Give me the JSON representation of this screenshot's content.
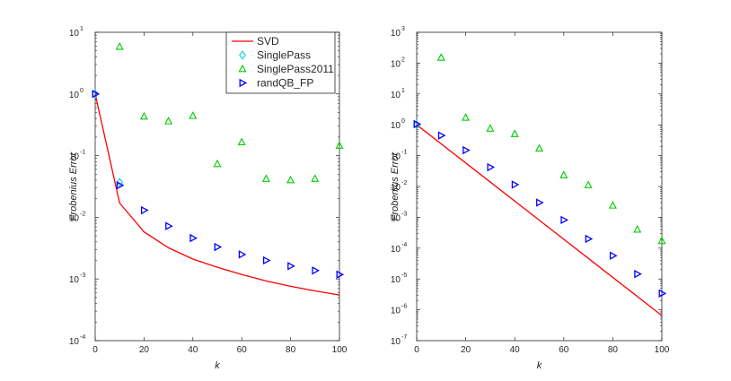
{
  "chart_data": [
    {
      "type": "line",
      "xlabel": "k",
      "ylabel": "Frobenius Error",
      "xlim": [
        0,
        100
      ],
      "xticks": [
        0,
        20,
        40,
        60,
        80,
        100
      ],
      "yscale": "log",
      "ylim": [
        0.0001,
        10
      ],
      "yticks": [
        {
          "base": "10",
          "exp": "-4",
          "value": 0.0001
        },
        {
          "base": "10",
          "exp": "-3",
          "value": 0.001
        },
        {
          "base": "10",
          "exp": "-2",
          "value": 0.01
        },
        {
          "base": "10",
          "exp": "-1",
          "value": 0.1
        },
        {
          "base": "10",
          "exp": "0",
          "value": 1
        },
        {
          "base": "10",
          "exp": "1",
          "value": 10
        }
      ],
      "legend_position": "top-right",
      "series": [
        {
          "name": "SVD",
          "style": "line",
          "color": "#ff0000",
          "x": [
            0,
            10,
            20,
            30,
            40,
            50,
            60,
            70,
            80,
            90,
            100
          ],
          "y": [
            1.0,
            0.017,
            0.0058,
            0.0032,
            0.0021,
            0.00155,
            0.00118,
            0.00093,
            0.00076,
            0.00064,
            0.00055
          ]
        },
        {
          "name": "SinglePass",
          "style": "marker",
          "marker": "diamond",
          "color": "#00d4e6",
          "x": [
            0,
            10
          ],
          "y": [
            1.0,
            0.037
          ]
        },
        {
          "name": "SinglePass2011",
          "style": "marker",
          "marker": "triangle-up",
          "color": "#00cc00",
          "x": [
            10,
            20,
            30,
            40,
            50,
            60,
            70,
            80,
            90,
            100
          ],
          "y": [
            5.8,
            0.43,
            0.36,
            0.44,
            0.073,
            0.165,
            0.042,
            0.04,
            0.042,
            0.145
          ]
        },
        {
          "name": "randQB_FP",
          "style": "marker",
          "marker": "triangle-right",
          "color": "#0000ff",
          "x": [
            0,
            10,
            20,
            30,
            40,
            50,
            60,
            70,
            80,
            90,
            100
          ],
          "y": [
            1.0,
            0.033,
            0.013,
            0.0072,
            0.0046,
            0.0033,
            0.0025,
            0.002,
            0.00162,
            0.00137,
            0.00118
          ]
        }
      ]
    },
    {
      "type": "line",
      "xlabel": "k",
      "ylabel": "Frobenius Error",
      "xlim": [
        0,
        100
      ],
      "xticks": [
        0,
        20,
        40,
        60,
        80,
        100
      ],
      "yscale": "log",
      "ylim": [
        1e-07,
        1000
      ],
      "yticks": [
        {
          "base": "10",
          "exp": "-7",
          "value": 1e-07
        },
        {
          "base": "10",
          "exp": "-6",
          "value": 1e-06
        },
        {
          "base": "10",
          "exp": "-5",
          "value": 1e-05
        },
        {
          "base": "10",
          "exp": "-4",
          "value": 0.0001
        },
        {
          "base": "10",
          "exp": "-3",
          "value": 0.001
        },
        {
          "base": "10",
          "exp": "-2",
          "value": 0.01
        },
        {
          "base": "10",
          "exp": "-1",
          "value": 0.1
        },
        {
          "base": "10",
          "exp": "0",
          "value": 1
        },
        {
          "base": "10",
          "exp": "1",
          "value": 10
        },
        {
          "base": "10",
          "exp": "2",
          "value": 100
        },
        {
          "base": "10",
          "exp": "3",
          "value": 1000
        }
      ],
      "series": [
        {
          "name": "SVD",
          "style": "line",
          "color": "#ff0000",
          "x": [
            0,
            100
          ],
          "y": [
            1.0,
            6.5e-07
          ]
        },
        {
          "name": "SinglePass",
          "style": "marker",
          "marker": "diamond",
          "color": "#00d4e6",
          "x": [
            0
          ],
          "y": [
            1.0
          ]
        },
        {
          "name": "SinglePass2011",
          "style": "marker",
          "marker": "triangle-up",
          "color": "#00cc00",
          "x": [
            10,
            20,
            30,
            40,
            50,
            60,
            70,
            80,
            90,
            100
          ],
          "y": [
            150,
            1.7,
            0.75,
            0.5,
            0.17,
            0.023,
            0.011,
            0.0024,
            0.0004,
            0.00017
          ]
        },
        {
          "name": "randQB_FP",
          "style": "marker",
          "marker": "triangle-right",
          "color": "#0000ff",
          "x": [
            0,
            10,
            20,
            30,
            40,
            50,
            60,
            70,
            80,
            90,
            100
          ],
          "y": [
            1.05,
            0.45,
            0.15,
            0.042,
            0.0115,
            0.003,
            0.00082,
            0.0002,
            5.7e-05,
            1.45e-05,
            3.4e-06
          ]
        }
      ]
    }
  ]
}
